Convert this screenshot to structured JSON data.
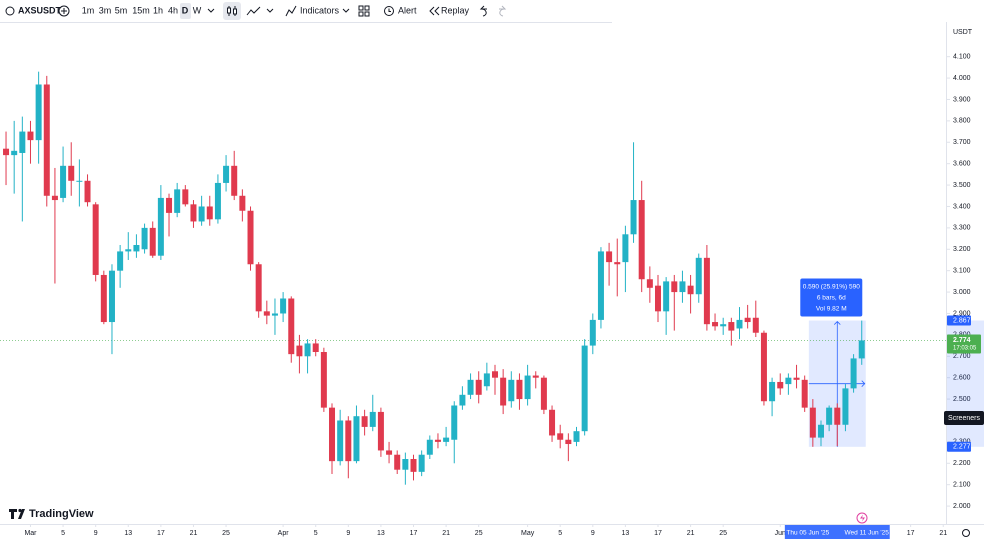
{
  "toolbar": {
    "symbol": "AXSUSDT",
    "intervals": [
      "1m",
      "3m",
      "5m",
      "15m",
      "1h",
      "4h",
      "D",
      "W"
    ],
    "active_interval": "D",
    "indicators": "Indicators",
    "alert": "Alert",
    "replay": "Replay"
  },
  "logo": "TradingView",
  "screeners": "Screeners",
  "chart_data": {
    "type": "candlestick",
    "up_color": "#22b2c6",
    "down_color": "#e03a4e",
    "open": [
      3.67,
      3.64,
      3.65,
      3.75,
      3.71,
      3.97,
      3.45,
      3.44,
      3.59,
      3.52,
      3.52,
      3.41,
      3.08,
      2.86,
      3.1,
      3.19,
      3.19,
      3.2,
      3.3,
      3.17,
      3.44,
      3.37,
      3.48,
      3.41,
      3.33,
      3.4,
      3.34,
      3.51,
      3.59,
      3.45,
      3.38,
      3.13,
      2.91,
      2.89,
      2.9,
      2.97,
      2.75,
      2.7,
      2.76,
      2.72,
      2.46,
      2.21,
      2.4,
      2.21,
      2.42,
      2.37,
      2.44,
      2.26,
      2.24,
      2.17,
      2.22,
      2.16,
      2.24,
      2.31,
      2.3,
      2.31,
      2.47,
      2.52,
      2.59,
      2.56,
      2.63,
      2.6,
      2.49,
      2.59,
      2.5,
      2.61,
      2.6,
      2.45,
      2.34,
      2.31,
      2.3,
      2.35,
      2.75,
      2.87,
      3.19,
      3.14,
      3.14,
      3.27,
      3.43,
      3.06,
      3.03,
      2.91,
      3.05,
      3.0,
      3.03,
      2.99,
      3.16,
      2.86,
      2.84,
      2.86,
      2.83,
      2.88,
      2.88,
      2.81,
      2.49,
      2.58,
      2.57,
      2.6,
      2.59,
      2.46,
      2.32,
      2.38,
      2.46,
      2.38,
      2.55,
      2.69
    ],
    "high": [
      3.75,
      3.8,
      3.82,
      3.8,
      4.03,
      4.01,
      3.58,
      3.68,
      3.7,
      3.62,
      3.55,
      3.42,
      3.1,
      3.13,
      3.22,
      3.28,
      3.27,
      3.32,
      3.33,
      3.5,
      3.46,
      3.51,
      3.5,
      3.43,
      3.45,
      3.45,
      3.55,
      3.64,
      3.66,
      3.48,
      3.4,
      3.14,
      2.96,
      2.97,
      3.0,
      2.98,
      2.8,
      2.78,
      2.78,
      2.74,
      2.48,
      2.45,
      2.42,
      2.47,
      2.45,
      2.52,
      2.46,
      2.3,
      2.26,
      2.25,
      2.24,
      2.26,
      2.33,
      2.34,
      2.37,
      2.49,
      2.56,
      2.62,
      2.63,
      2.67,
      2.66,
      2.64,
      2.63,
      2.62,
      2.66,
      2.63,
      2.61,
      2.47,
      2.38,
      2.34,
      2.37,
      2.78,
      2.9,
      3.21,
      3.23,
      3.25,
      3.31,
      3.7,
      3.52,
      3.12,
      3.08,
      3.07,
      3.08,
      3.1,
      3.08,
      3.18,
      3.22,
      2.9,
      2.88,
      2.88,
      2.93,
      2.94,
      2.96,
      2.82,
      2.6,
      2.62,
      2.62,
      2.66,
      2.61,
      2.5,
      2.4,
      2.47,
      2.48,
      2.57,
      2.71,
      2.867
    ],
    "low": [
      3.5,
      3.46,
      3.33,
      3.6,
      3.6,
      3.4,
      3.04,
      3.42,
      3.45,
      3.4,
      3.4,
      3.05,
      2.85,
      2.71,
      3.02,
      3.15,
      3.16,
      3.18,
      3.16,
      3.15,
      3.26,
      3.35,
      3.4,
      3.3,
      3.31,
      3.31,
      3.32,
      3.47,
      3.43,
      3.33,
      3.1,
      2.88,
      2.85,
      2.8,
      2.86,
      2.67,
      2.62,
      2.62,
      2.7,
      2.44,
      2.15,
      2.19,
      2.13,
      2.2,
      2.33,
      2.35,
      2.23,
      2.2,
      2.15,
      2.1,
      2.12,
      2.14,
      2.22,
      2.27,
      2.28,
      2.2,
      2.45,
      2.5,
      2.48,
      2.54,
      2.52,
      2.43,
      2.46,
      2.45,
      2.47,
      2.55,
      2.43,
      2.3,
      2.27,
      2.21,
      2.28,
      2.33,
      2.71,
      2.83,
      3.03,
      2.98,
      3.0,
      3.23,
      3.0,
      2.95,
      2.86,
      2.8,
      2.82,
      2.95,
      2.9,
      2.95,
      2.82,
      2.82,
      2.8,
      2.75,
      2.78,
      2.83,
      2.79,
      2.47,
      2.42,
      2.52,
      2.52,
      2.55,
      2.44,
      2.277,
      2.28,
      2.35,
      2.28,
      2.35,
      2.53,
      2.66
    ],
    "close": [
      3.64,
      3.66,
      3.75,
      3.71,
      3.97,
      3.45,
      3.43,
      3.59,
      3.52,
      3.52,
      3.42,
      3.08,
      2.86,
      3.1,
      3.19,
      3.2,
      3.22,
      3.3,
      3.17,
      3.44,
      3.37,
      3.48,
      3.41,
      3.33,
      3.4,
      3.34,
      3.51,
      3.59,
      3.45,
      3.38,
      3.13,
      2.91,
      2.89,
      2.9,
      2.97,
      2.71,
      2.7,
      2.76,
      2.72,
      2.46,
      2.21,
      2.4,
      2.21,
      2.42,
      2.37,
      2.44,
      2.26,
      2.24,
      2.17,
      2.22,
      2.16,
      2.24,
      2.31,
      2.3,
      2.32,
      2.47,
      2.52,
      2.59,
      2.52,
      2.62,
      2.6,
      2.47,
      2.59,
      2.5,
      2.61,
      2.6,
      2.45,
      2.33,
      2.31,
      2.29,
      2.35,
      2.75,
      2.87,
      3.19,
      3.14,
      3.13,
      3.27,
      3.43,
      3.06,
      3.02,
      2.91,
      3.05,
      3.0,
      3.05,
      2.99,
      3.16,
      2.85,
      2.84,
      2.85,
      2.82,
      2.87,
      2.86,
      2.81,
      2.49,
      2.58,
      2.55,
      2.6,
      2.59,
      2.46,
      2.32,
      2.38,
      2.46,
      2.38,
      2.55,
      2.69,
      2.774
    ],
    "xlim": [
      -0.74,
      115.34
    ],
    "xticks": [
      {
        "value": 3,
        "label": "Mar"
      },
      {
        "value": 7,
        "label": "5"
      },
      {
        "value": 11,
        "label": "9"
      },
      {
        "value": 15,
        "label": "13"
      },
      {
        "value": 19,
        "label": "17"
      },
      {
        "value": 23,
        "label": "21"
      },
      {
        "value": 27,
        "label": "25"
      },
      {
        "value": 34,
        "label": "Apr"
      },
      {
        "value": 38,
        "label": "5"
      },
      {
        "value": 42,
        "label": "9"
      },
      {
        "value": 46,
        "label": "13"
      },
      {
        "value": 50,
        "label": "17"
      },
      {
        "value": 54,
        "label": "21"
      },
      {
        "value": 58,
        "label": "25"
      },
      {
        "value": 64,
        "label": "May"
      },
      {
        "value": 68,
        "label": "5"
      },
      {
        "value": 72,
        "label": "9"
      },
      {
        "value": 76,
        "label": "13"
      },
      {
        "value": 80,
        "label": "17"
      },
      {
        "value": 84,
        "label": "21"
      },
      {
        "value": 88,
        "label": "25"
      },
      {
        "value": 95,
        "label": "Jun"
      },
      {
        "value": 111,
        "label": "17"
      },
      {
        "value": 115,
        "label": "21"
      }
    ],
    "ylim": [
      1.935,
      4.262
    ],
    "yticks": [
      {
        "value": 2,
        "label": "2.000"
      },
      {
        "value": 2.1,
        "label": "2.100"
      },
      {
        "value": 2.2,
        "label": "2.200"
      },
      {
        "value": 2.3,
        "label": "2.300"
      },
      {
        "value": 2.4,
        "label": "2.400"
      },
      {
        "value": 2.5,
        "label": "2.500"
      },
      {
        "value": 2.6,
        "label": "2.600"
      },
      {
        "value": 2.7,
        "label": "2.700"
      },
      {
        "value": 2.8,
        "label": "2.800"
      },
      {
        "value": 2.9,
        "label": "2.900"
      },
      {
        "value": 3,
        "label": "3.000"
      },
      {
        "value": 3.1,
        "label": "3.100"
      },
      {
        "value": 3.2,
        "label": "3.200"
      },
      {
        "value": 3.3,
        "label": "3.300"
      },
      {
        "value": 3.4,
        "label": "3.400"
      },
      {
        "value": 3.5,
        "label": "3.500"
      },
      {
        "value": 3.6,
        "label": "3.600"
      },
      {
        "value": 3.7,
        "label": "3.700"
      },
      {
        "value": 3.8,
        "label": "3.800"
      },
      {
        "value": 3.9,
        "label": "3.900"
      },
      {
        "value": 4,
        "label": "4.000"
      },
      {
        "value": 4.1,
        "label": "4.100"
      }
    ],
    "currency": "USDT",
    "grid": false,
    "last_price": {
      "value": 2.774,
      "label": "2.774",
      "countdown": "17:03:05",
      "color": "#4caf50"
    },
    "measure": {
      "start": 99,
      "end": 105,
      "low": {
        "value": 2.277,
        "label": "2.277"
      },
      "high": {
        "value": 2.867,
        "label": "2.867"
      },
      "lines": [
        "0.590 (25.91%) 590",
        "6 bars, 6d",
        "Vol 9.82 M"
      ],
      "start_label": "Thu 05 Jun '25",
      "end_label": "Wed 11 Jun '25",
      "color": "#2962ff"
    }
  }
}
